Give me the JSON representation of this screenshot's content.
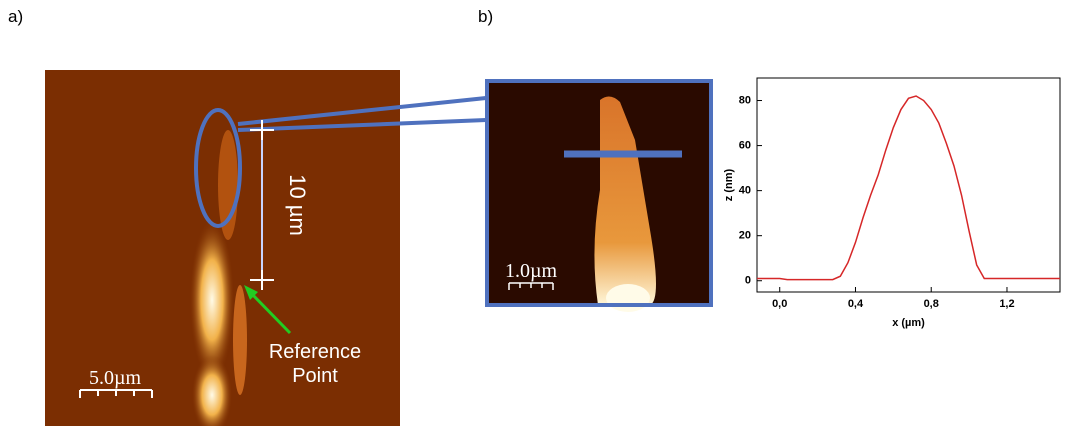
{
  "panel_a": {
    "label": "a)",
    "length_label": "10 µm",
    "annotation": "Reference Point",
    "scale_bar": "5.0µm"
  },
  "panel_b": {
    "label": "b)",
    "scale_bar": "1.0µm"
  },
  "chart_data": {
    "type": "line",
    "x_label": "x (µm)",
    "y_label": "z (nm)",
    "x": [
      -0.12,
      -0.08,
      -0.04,
      0,
      0.04,
      0.08,
      0.12,
      0.16,
      0.2,
      0.24,
      0.28,
      0.32,
      0.36,
      0.4,
      0.44,
      0.48,
      0.52,
      0.56,
      0.6,
      0.64,
      0.68,
      0.72,
      0.76,
      0.8,
      0.84,
      0.88,
      0.92,
      0.96,
      1.0,
      1.04,
      1.08,
      1.12,
      1.16,
      1.2,
      1.24,
      1.28,
      1.32,
      1.36,
      1.4,
      1.44,
      1.48
    ],
    "series": [
      {
        "color": "#d62728",
        "values": [
          1,
          1,
          1,
          1,
          0.5,
          0.5,
          0.5,
          0.5,
          0.5,
          0.5,
          0.5,
          2,
          8,
          17,
          28,
          38,
          47,
          58,
          68,
          76,
          81,
          82,
          80,
          76,
          70,
          61,
          51,
          38,
          22,
          7,
          1,
          1,
          1,
          1,
          1,
          1,
          1,
          1,
          1,
          1,
          1
        ]
      }
    ],
    "xlim": [
      -0.12,
      1.48
    ],
    "ylim": [
      -5,
      90
    ],
    "xticks": [
      {
        "value": 0,
        "label": "0,0"
      },
      {
        "value": 0.4,
        "label": "0,4"
      },
      {
        "value": 0.8,
        "label": "0,8"
      },
      {
        "value": 1.2,
        "label": "1,2"
      }
    ],
    "yticks": [
      0,
      20,
      40,
      60,
      80
    ]
  }
}
